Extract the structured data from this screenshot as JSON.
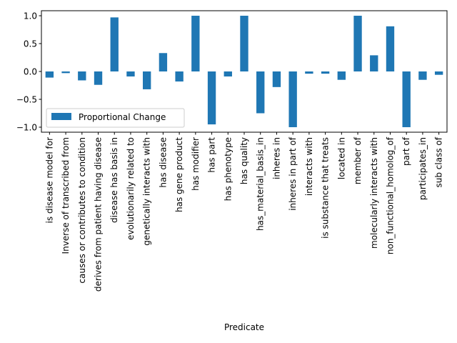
{
  "chart_data": {
    "type": "bar",
    "xlabel": "Predicate",
    "ylabel": "",
    "ylim": [
      -1.09,
      1.09
    ],
    "yticks": [
      -1.0,
      -0.5,
      0.0,
      0.5,
      1.0
    ],
    "ytick_labels": [
      "−1.0",
      "−0.5",
      "0.0",
      "0.5",
      "1.0"
    ],
    "grid": false,
    "legend_position": "center-left",
    "bar_color": "#1f77b4",
    "categories": [
      "is disease model for",
      "Inverse of transcribed from",
      "causes or contributes to condition",
      "derives from patient having disease",
      "disease has basis in",
      "evolutionarily related to",
      "genetically interacts with",
      "has disease",
      "has gene product",
      "has modifier",
      "has part",
      "has phenotype",
      "has quality",
      "has_material_basis_in",
      "inheres in",
      "inheres in part of",
      "interacts with",
      "is substance that treats",
      "located in",
      "member of",
      "molecularly interacts with",
      "non_functional_homolog_of",
      "part of",
      "participates_in",
      "sub class of"
    ],
    "series": [
      {
        "name": "Proportional Change",
        "values": [
          -0.11,
          -0.03,
          -0.16,
          -0.24,
          0.97,
          -0.09,
          -0.32,
          0.33,
          -0.18,
          1.0,
          -0.95,
          -0.09,
          1.0,
          -0.75,
          -0.28,
          -1.0,
          -0.04,
          -0.04,
          -0.15,
          1.0,
          0.29,
          0.81,
          -1.0,
          -0.15,
          -0.06
        ]
      }
    ]
  }
}
